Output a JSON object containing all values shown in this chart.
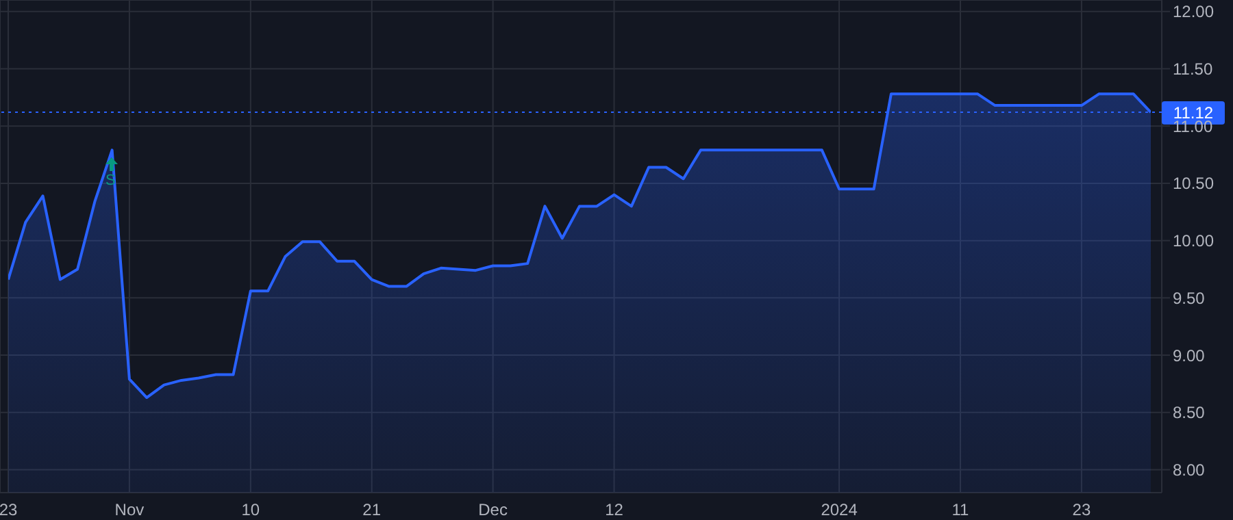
{
  "chart_data": {
    "type": "area",
    "categories": [
      "23",
      null,
      null,
      null,
      null,
      null,
      null,
      "Nov",
      null,
      null,
      null,
      null,
      null,
      null,
      "10",
      null,
      null,
      null,
      null,
      null,
      null,
      "21",
      null,
      null,
      null,
      null,
      null,
      null,
      "Dec",
      null,
      null,
      null,
      null,
      null,
      null,
      "12",
      null,
      null,
      null,
      null,
      null,
      null,
      null,
      null,
      null,
      null,
      null,
      null,
      "2024",
      null,
      null,
      null,
      null,
      null,
      null,
      "11",
      null,
      null,
      null,
      null,
      null,
      null,
      "23",
      null,
      null,
      null,
      null
    ],
    "series": [
      {
        "color": "#2962ff",
        "values": [
          9.66,
          10.16,
          10.39,
          9.66,
          9.75,
          10.34,
          10.79,
          8.79,
          8.63,
          8.74,
          8.78,
          8.8,
          8.83,
          8.83,
          9.56,
          9.56,
          9.86,
          9.99,
          9.99,
          9.82,
          9.82,
          9.66,
          9.6,
          9.6,
          9.71,
          9.76,
          9.75,
          9.74,
          9.78,
          9.78,
          9.8,
          10.3,
          10.02,
          10.3,
          10.3,
          10.4,
          10.3,
          10.64,
          10.64,
          10.54,
          10.79,
          10.79,
          10.79,
          10.79,
          10.79,
          10.79,
          10.79,
          10.79,
          10.45,
          10.45,
          10.45,
          11.28,
          11.28,
          11.28,
          11.28,
          11.28,
          11.28,
          11.18,
          11.18,
          11.18,
          11.18,
          11.18,
          11.18,
          11.28,
          11.28,
          11.28,
          11.12
        ]
      }
    ],
    "ylim": [
      7.8,
      12.1
    ],
    "yticks": [
      {
        "value": 8,
        "label": "8.00"
      },
      {
        "value": 8.5,
        "label": "8.50"
      },
      {
        "value": 9,
        "label": "9.00"
      },
      {
        "value": 9.5,
        "label": "9.50"
      },
      {
        "value": 10,
        "label": "10.00"
      },
      {
        "value": 10.5,
        "label": "10.50"
      },
      {
        "value": 11,
        "label": "11.00"
      },
      {
        "value": 11.5,
        "label": "11.50"
      },
      {
        "value": 12,
        "label": "12.00"
      }
    ],
    "grid": true,
    "ref_lines": [
      {
        "axis": "y",
        "value": 11.12,
        "label": "11.12",
        "color": "#2962ff",
        "line_style": "dotted"
      }
    ],
    "annotations": [
      "S"
    ]
  }
}
